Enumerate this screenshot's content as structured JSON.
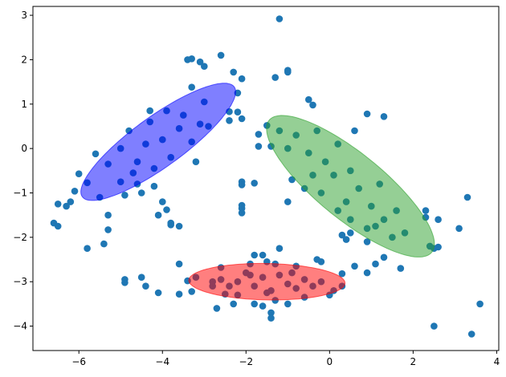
{
  "chart_data": {
    "type": "scatter",
    "title": "",
    "xlabel": "",
    "ylabel": "",
    "xlim": [
      -7.1,
      4.05
    ],
    "ylim": [
      -4.55,
      3.2
    ],
    "x_ticks": [
      -6,
      -4,
      -2,
      0,
      2,
      4
    ],
    "y_ticks": [
      -4,
      -3,
      -2,
      -1,
      0,
      1,
      2,
      3
    ],
    "x_tick_labels": [
      "−6",
      "−4",
      "−2",
      "0",
      "2",
      "4"
    ],
    "y_tick_labels": [
      "−4",
      "−3",
      "−2",
      "−1",
      "0",
      "1",
      "2",
      "3"
    ],
    "grid": false,
    "legend": "none",
    "point_color": "#1f77b4",
    "points": [
      [
        -1.2,
        2.92
      ],
      [
        -2.6,
        2.1
      ],
      [
        -3.3,
        2.02
      ],
      [
        -3.4,
        2.0
      ],
      [
        -3.1,
        1.95
      ],
      [
        -3.0,
        1.85
      ],
      [
        -2.3,
        1.72
      ],
      [
        -1.0,
        1.76
      ],
      [
        -1.0,
        1.72
      ],
      [
        -2.1,
        1.57
      ],
      [
        -1.3,
        1.6
      ],
      [
        -3.3,
        1.38
      ],
      [
        -2.2,
        1.25
      ],
      [
        -0.5,
        1.1
      ],
      [
        -0.4,
        0.98
      ],
      [
        -2.4,
        0.83
      ],
      [
        -2.2,
        0.82
      ],
      [
        -4.3,
        0.85
      ],
      [
        -2.1,
        0.67
      ],
      [
        -2.4,
        0.63
      ],
      [
        0.9,
        0.78
      ],
      [
        1.3,
        0.72
      ],
      [
        -1.5,
        0.52
      ],
      [
        -1.7,
        0.32
      ],
      [
        -1.7,
        0.05
      ],
      [
        -1.4,
        0.05
      ],
      [
        0.6,
        0.4
      ],
      [
        -5.6,
        -0.12
      ],
      [
        -5.3,
        -0.35
      ],
      [
        -6.0,
        -0.57
      ],
      [
        -5.8,
        -0.77
      ],
      [
        -6.1,
        -0.96
      ],
      [
        -6.2,
        -1.2
      ],
      [
        -6.5,
        -1.25
      ],
      [
        -6.3,
        -1.3
      ],
      [
        -5.5,
        -1.1
      ],
      [
        -5.3,
        -1.5
      ],
      [
        -4.0,
        -1.2
      ],
      [
        -3.9,
        -1.38
      ],
      [
        -4.1,
        -1.5
      ],
      [
        -3.8,
        -1.72
      ],
      [
        -3.6,
        -1.75
      ],
      [
        -2.1,
        -0.75
      ],
      [
        -2.1,
        -0.82
      ],
      [
        -1.8,
        -0.78
      ],
      [
        -2.1,
        -1.28
      ],
      [
        -2.1,
        -1.35
      ],
      [
        -6.6,
        -1.68
      ],
      [
        -6.5,
        -1.75
      ],
      [
        -5.3,
        -1.83
      ],
      [
        -5.4,
        -2.15
      ],
      [
        -5.8,
        -2.25
      ],
      [
        -3.8,
        -1.68
      ],
      [
        -2.1,
        -1.45
      ],
      [
        -1.0,
        -1.2
      ],
      [
        0.3,
        -1.95
      ],
      [
        0.4,
        -2.05
      ],
      [
        0.5,
        -1.9
      ],
      [
        0.9,
        -2.1
      ],
      [
        1.1,
        -1.75
      ],
      [
        -2.6,
        -2.68
      ],
      [
        -1.8,
        -2.4
      ],
      [
        -1.6,
        -2.4
      ],
      [
        -1.9,
        -2.6
      ],
      [
        -1.5,
        -2.55
      ],
      [
        -1.3,
        -2.6
      ],
      [
        -1.2,
        -2.25
      ],
      [
        -0.8,
        -2.65
      ],
      [
        -0.3,
        -2.5
      ],
      [
        -0.2,
        -2.55
      ],
      [
        0.3,
        -2.82
      ],
      [
        0.6,
        -2.65
      ],
      [
        0.9,
        -2.8
      ],
      [
        1.1,
        -2.6
      ],
      [
        1.3,
        -2.45
      ],
      [
        1.7,
        -2.7
      ],
      [
        2.3,
        -1.4
      ],
      [
        2.6,
        -1.6
      ],
      [
        2.3,
        -1.55
      ],
      [
        3.1,
        -1.8
      ],
      [
        3.3,
        -1.1
      ],
      [
        2.4,
        -2.2
      ],
      [
        2.5,
        -2.25
      ],
      [
        2.6,
        -2.22
      ],
      [
        2.5,
        -4.0
      ],
      [
        3.4,
        -4.18
      ],
      [
        3.6,
        -3.5
      ],
      [
        -4.9,
        -2.95
      ],
      [
        -4.9,
        -3.02
      ],
      [
        -4.5,
        -2.9
      ],
      [
        -4.4,
        -3.1
      ],
      [
        -4.1,
        -3.25
      ],
      [
        -3.6,
        -3.28
      ],
      [
        -3.6,
        -2.6
      ],
      [
        -3.4,
        -2.98
      ],
      [
        -3.3,
        -3.22
      ],
      [
        -3.2,
        -2.9
      ],
      [
        -2.8,
        -3.1
      ],
      [
        -2.7,
        -3.6
      ],
      [
        -2.5,
        -3.28
      ],
      [
        -2.3,
        -3.5
      ],
      [
        -2.2,
        -3.3
      ],
      [
        -1.8,
        -3.5
      ],
      [
        -1.6,
        -3.55
      ],
      [
        -1.4,
        -3.7
      ],
      [
        -1.4,
        -3.82
      ],
      [
        -1.3,
        -3.42
      ],
      [
        -1.0,
        -3.5
      ],
      [
        -0.6,
        -3.35
      ],
      [
        0.0,
        -3.3
      ],
      [
        0.1,
        -3.2
      ],
      [
        0.3,
        -3.1
      ],
      [
        -2.8,
        -3.0
      ],
      [
        -5.0,
        -0.75
      ],
      [
        -4.9,
        -1.05
      ],
      [
        -4.5,
        -1.0
      ],
      [
        -4.7,
        -0.55
      ],
      [
        -5.0,
        0.0
      ],
      [
        -4.8,
        0.4
      ],
      [
        -4.6,
        -0.3
      ],
      [
        -4.4,
        0.1
      ],
      [
        -4.2,
        -0.45
      ],
      [
        -4.0,
        0.2
      ],
      [
        -3.8,
        -0.2
      ],
      [
        -3.6,
        0.45
      ],
      [
        -3.5,
        0.75
      ],
      [
        -3.3,
        0.15
      ],
      [
        -3.1,
        0.55
      ],
      [
        -3.0,
        1.05
      ],
      [
        -2.9,
        0.5
      ],
      [
        -4.3,
        0.6
      ],
      [
        -3.9,
        0.85
      ],
      [
        -4.2,
        -0.85
      ],
      [
        -4.6,
        -0.8
      ],
      [
        -3.2,
        -0.3
      ],
      [
        -1.2,
        0.4
      ],
      [
        -1.0,
        0.0
      ],
      [
        -0.8,
        0.3
      ],
      [
        -0.5,
        -0.1
      ],
      [
        -0.3,
        0.4
      ],
      [
        -0.1,
        -0.3
      ],
      [
        0.2,
        0.1
      ],
      [
        0.5,
        -0.5
      ],
      [
        -0.9,
        -0.7
      ],
      [
        -0.6,
        -0.9
      ],
      [
        -0.2,
        -1.0
      ],
      [
        0.1,
        -0.6
      ],
      [
        0.4,
        -1.2
      ],
      [
        0.7,
        -0.9
      ],
      [
        1.0,
        -1.3
      ],
      [
        1.2,
        -0.8
      ],
      [
        0.5,
        -1.6
      ],
      [
        0.9,
        -1.8
      ],
      [
        1.3,
        -1.6
      ],
      [
        1.6,
        -1.4
      ],
      [
        1.5,
        -2.0
      ],
      [
        1.8,
        -1.9
      ],
      [
        0.2,
        -1.4
      ],
      [
        -0.4,
        -0.6
      ],
      [
        -2.2,
        -3.0
      ],
      [
        -2.0,
        -2.8
      ],
      [
        -1.8,
        -3.1
      ],
      [
        -1.6,
        -2.9
      ],
      [
        -1.4,
        -3.2
      ],
      [
        -1.2,
        -2.85
      ],
      [
        -1.0,
        -3.05
      ],
      [
        -0.8,
        -3.15
      ],
      [
        -0.6,
        -2.95
      ],
      [
        -0.4,
        -3.1
      ],
      [
        -0.2,
        -3.0
      ],
      [
        -2.4,
        -3.1
      ],
      [
        -1.5,
        -3.25
      ],
      [
        -0.9,
        -2.8
      ],
      [
        -1.9,
        -2.85
      ],
      [
        -2.6,
        -2.95
      ]
    ],
    "ellipses": [
      {
        "name": "",
        "color": "#0000ff",
        "cx": -4.1,
        "cy": 0.15,
        "rx": 2.2,
        "ry": 0.58,
        "angle_deg": 34
      },
      {
        "name": "",
        "color": "#2ca02c",
        "cx": 0.5,
        "cy": -0.85,
        "rx": 2.45,
        "ry": 0.76,
        "angle_deg": -37
      },
      {
        "name": "",
        "color": "#ff0000",
        "cx": -1.5,
        "cy": -3.0,
        "rx": 1.87,
        "ry": 0.41,
        "angle_deg": -1
      }
    ]
  }
}
